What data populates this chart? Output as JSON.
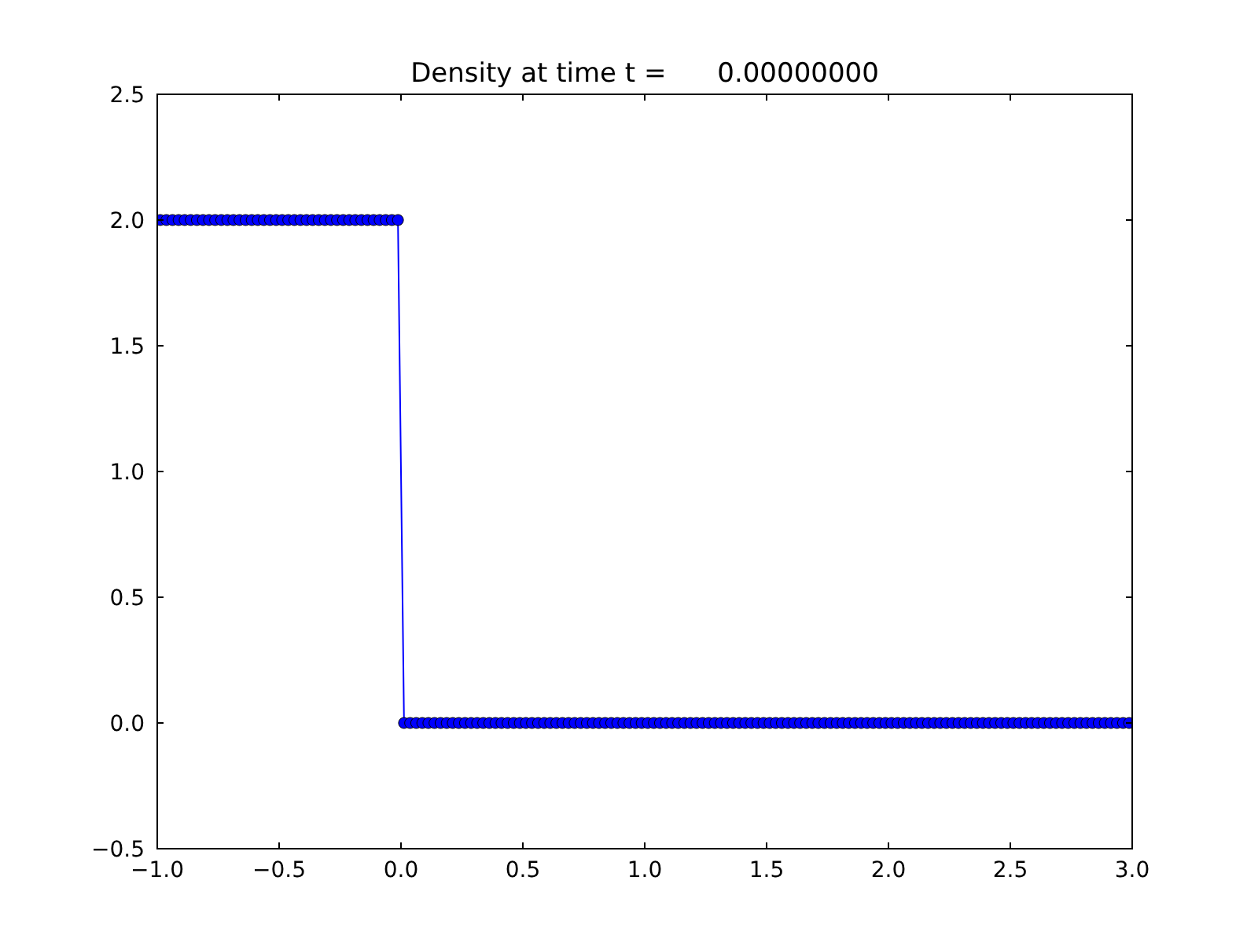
{
  "chart_data": {
    "type": "line",
    "title": "Density at time t =      0.00000000",
    "marker": "circle",
    "xlim": [
      -1,
      3
    ],
    "ylim": [
      -0.5,
      2.5
    ],
    "xticks": [
      {
        "value": -1,
        "label": "−1.0"
      },
      {
        "value": -0.5,
        "label": "−0.5"
      },
      {
        "value": 0,
        "label": "0.0"
      },
      {
        "value": 0.5,
        "label": "0.5"
      },
      {
        "value": 1,
        "label": "1.0"
      },
      {
        "value": 1.5,
        "label": "1.5"
      },
      {
        "value": 2,
        "label": "2.0"
      },
      {
        "value": 2.5,
        "label": "2.5"
      },
      {
        "value": 3,
        "label": "3.0"
      }
    ],
    "yticks": [
      {
        "value": -0.5,
        "label": "−0.5"
      },
      {
        "value": 0,
        "label": "0.0"
      },
      {
        "value": 0.5,
        "label": "0.5"
      },
      {
        "value": 1,
        "label": "1.0"
      },
      {
        "value": 1.5,
        "label": "1.5"
      },
      {
        "value": 2,
        "label": "2.0"
      },
      {
        "value": 2.5,
        "label": "2.5"
      }
    ],
    "x": [
      -0.9875,
      -0.9625,
      -0.9375,
      -0.9125,
      -0.8875,
      -0.8625,
      -0.8375,
      -0.8125,
      -0.7875,
      -0.7625,
      -0.7375,
      -0.7125,
      -0.6875,
      -0.6625,
      -0.6375,
      -0.6125,
      -0.5875,
      -0.5625,
      -0.5375,
      -0.5125,
      -0.4875,
      -0.4625,
      -0.4375,
      -0.4125,
      -0.3875,
      -0.3625,
      -0.3375,
      -0.3125,
      -0.2875,
      -0.2625,
      -0.2375,
      -0.2125,
      -0.1875,
      -0.1625,
      -0.1375,
      -0.1125,
      -0.0875,
      -0.0625,
      -0.0375,
      -0.0125,
      0.0125,
      0.0375,
      0.0625,
      0.0875,
      0.1125,
      0.1375,
      0.1625,
      0.1875,
      0.2125,
      0.2375,
      0.2625,
      0.2875,
      0.3125,
      0.3375,
      0.3625,
      0.3875,
      0.4125,
      0.4375,
      0.4625,
      0.4875,
      0.5125,
      0.5375,
      0.5625,
      0.5875,
      0.6125,
      0.6375,
      0.6625,
      0.6875,
      0.7125,
      0.7375,
      0.7625,
      0.7875,
      0.8125,
      0.8375,
      0.8625,
      0.8875,
      0.9125,
      0.9375,
      0.9625,
      0.9875,
      1.0125,
      1.0375,
      1.0625,
      1.0875,
      1.1125,
      1.1375,
      1.1625,
      1.1875,
      1.2125,
      1.2375,
      1.2625,
      1.2875,
      1.3125,
      1.3375,
      1.3625,
      1.3875,
      1.4125,
      1.4375,
      1.4625,
      1.4875,
      1.5125,
      1.5375,
      1.5625,
      1.5875,
      1.6125,
      1.6375,
      1.6625,
      1.6875,
      1.7125,
      1.7375,
      1.7625,
      1.7875,
      1.8125,
      1.8375,
      1.8625,
      1.8875,
      1.9125,
      1.9375,
      1.9625,
      1.9875,
      2.0125,
      2.0375,
      2.0625,
      2.0875,
      2.1125,
      2.1375,
      2.1625,
      2.1875,
      2.2125,
      2.2375,
      2.2625,
      2.2875,
      2.3125,
      2.3375,
      2.3625,
      2.3875,
      2.4125,
      2.4375,
      2.4625,
      2.4875,
      2.5125,
      2.5375,
      2.5625,
      2.5875,
      2.6125,
      2.6375,
      2.6625,
      2.6875,
      2.7125,
      2.7375,
      2.7625,
      2.7875,
      2.8125,
      2.8375,
      2.8625,
      2.8875,
      2.9125,
      2.9375,
      2.9625,
      2.9875
    ],
    "series": [
      {
        "color": "#0000ff",
        "values": [
          2,
          2,
          2,
          2,
          2,
          2,
          2,
          2,
          2,
          2,
          2,
          2,
          2,
          2,
          2,
          2,
          2,
          2,
          2,
          2,
          2,
          2,
          2,
          2,
          2,
          2,
          2,
          2,
          2,
          2,
          2,
          2,
          2,
          2,
          2,
          2,
          2,
          2,
          2,
          2,
          0,
          0,
          0,
          0,
          0,
          0,
          0,
          0,
          0,
          0,
          0,
          0,
          0,
          0,
          0,
          0,
          0,
          0,
          0,
          0,
          0,
          0,
          0,
          0,
          0,
          0,
          0,
          0,
          0,
          0,
          0,
          0,
          0,
          0,
          0,
          0,
          0,
          0,
          0,
          0,
          0,
          0,
          0,
          0,
          0,
          0,
          0,
          0,
          0,
          0,
          0,
          0,
          0,
          0,
          0,
          0,
          0,
          0,
          0,
          0,
          0,
          0,
          0,
          0,
          0,
          0,
          0,
          0,
          0,
          0,
          0,
          0,
          0,
          0,
          0,
          0,
          0,
          0,
          0,
          0,
          0,
          0,
          0,
          0,
          0,
          0,
          0,
          0,
          0,
          0,
          0,
          0,
          0,
          0,
          0,
          0,
          0,
          0,
          0,
          0,
          0,
          0,
          0,
          0,
          0,
          0,
          0,
          0,
          0,
          0,
          0,
          0,
          0,
          0,
          0,
          0,
          0,
          0,
          0,
          0
        ]
      }
    ]
  }
}
